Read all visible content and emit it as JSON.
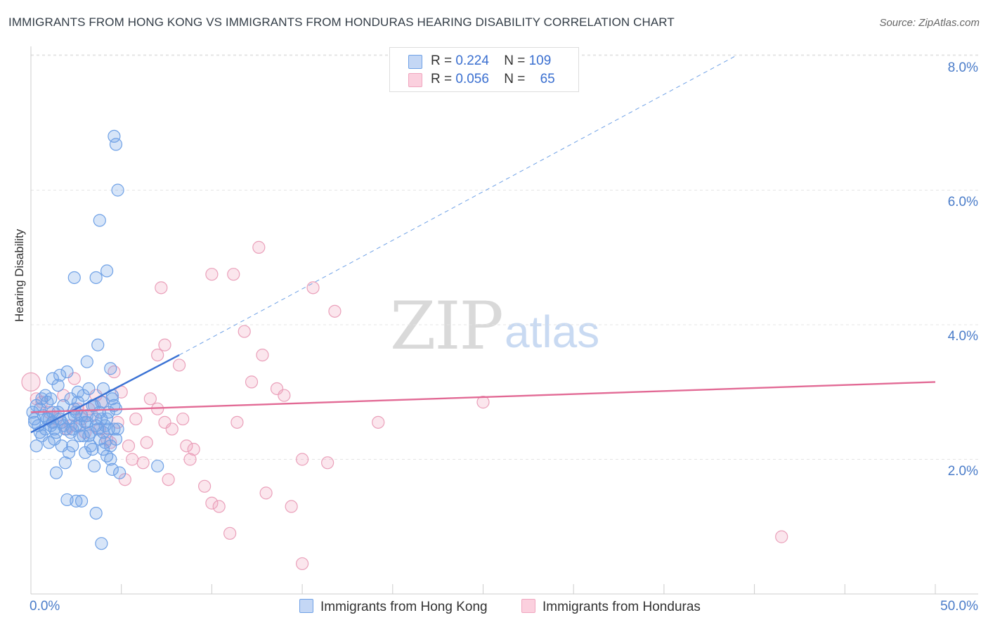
{
  "title": "IMMIGRANTS FROM HONG KONG VS IMMIGRANTS FROM HONDURAS HEARING DISABILITY CORRELATION CHART",
  "source": "Source: ZipAtlas.com",
  "watermark": {
    "zip": "ZIP",
    "atlas": "atlas"
  },
  "colors": {
    "blue": "#6fa1e6",
    "blue_line": "#3a72d4",
    "pink": "#f0a6bf",
    "pink_line": "#e26a95",
    "tick": "#4a7cc9"
  },
  "stats": [
    {
      "r_label": "R = ",
      "r_value": "0.224",
      "n_label": "N = ",
      "n_value": "109"
    },
    {
      "r_label": "R = ",
      "r_value": "0.056",
      "n_label": "N = ",
      "n_value": "65"
    }
  ],
  "legend": [
    {
      "label": "Immigrants from Hong Kong"
    },
    {
      "label": "Immigrants from Honduras"
    }
  ],
  "chart_data": {
    "type": "scatter",
    "ylabel": "Hearing Disability",
    "xlim": [
      0,
      50
    ],
    "ylim": [
      0,
      8.5
    ],
    "x_tick_labels": [
      "0.0%",
      "50.0%"
    ],
    "y_ticks": [
      2,
      4,
      6,
      8
    ],
    "y_tick_labels": [
      "2.0%",
      "4.0%",
      "6.0%",
      "8.0%"
    ],
    "grid": true,
    "legend_position": "bottom",
    "series": [
      {
        "name": "Immigrants from Hong Kong",
        "color": "#6fa1e6",
        "trend": {
          "x": [
            0,
            8.2
          ],
          "y": [
            2.4,
            3.55
          ],
          "dashed_extension_to": [
            39,
            8.0
          ]
        },
        "points": [
          [
            0.1,
            2.7
          ],
          [
            0.2,
            2.6
          ],
          [
            0.3,
            2.8
          ],
          [
            0.4,
            2.5
          ],
          [
            0.5,
            2.75
          ],
          [
            0.6,
            2.9
          ],
          [
            0.2,
            2.55
          ],
          [
            0.7,
            2.65
          ],
          [
            0.8,
            2.45
          ],
          [
            0.9,
            2.85
          ],
          [
            1.0,
            2.6
          ],
          [
            1.1,
            2.5
          ],
          [
            1.2,
            2.7
          ],
          [
            1.3,
            2.3
          ],
          [
            1.4,
            2.4
          ],
          [
            1.5,
            3.1
          ],
          [
            1.6,
            3.25
          ],
          [
            1.7,
            2.55
          ],
          [
            1.8,
            2.8
          ],
          [
            1.9,
            2.45
          ],
          [
            2.0,
            3.3
          ],
          [
            2.1,
            2.6
          ],
          [
            2.2,
            2.9
          ],
          [
            2.3,
            2.2
          ],
          [
            2.4,
            2.75
          ],
          [
            2.5,
            2.5
          ],
          [
            2.6,
            3.0
          ],
          [
            2.7,
            2.35
          ],
          [
            2.8,
            2.65
          ],
          [
            2.9,
            2.95
          ],
          [
            3.0,
            2.1
          ],
          [
            3.1,
            2.55
          ],
          [
            3.2,
            3.05
          ],
          [
            3.3,
            2.4
          ],
          [
            3.4,
            2.8
          ],
          [
            3.5,
            1.9
          ],
          [
            3.6,
            2.6
          ],
          [
            3.7,
            3.7
          ],
          [
            3.8,
            2.3
          ],
          [
            3.9,
            2.85
          ],
          [
            4.0,
            2.15
          ],
          [
            4.1,
            2.5
          ],
          [
            4.2,
            2.05
          ],
          [
            4.3,
            2.7
          ],
          [
            4.4,
            2.0
          ],
          [
            4.5,
            2.9
          ],
          [
            4.6,
            2.45
          ],
          [
            4.7,
            2.75
          ],
          [
            0.3,
            2.2
          ],
          [
            0.5,
            2.4
          ],
          [
            0.8,
            2.95
          ],
          [
            1.0,
            2.25
          ],
          [
            1.2,
            2.55
          ],
          [
            1.4,
            1.8
          ],
          [
            1.6,
            2.6
          ],
          [
            1.9,
            1.95
          ],
          [
            2.1,
            2.1
          ],
          [
            2.3,
            2.45
          ],
          [
            2.5,
            2.7
          ],
          [
            2.7,
            2.5
          ],
          [
            2.9,
            2.35
          ],
          [
            3.1,
            2.65
          ],
          [
            3.3,
            2.2
          ],
          [
            3.5,
            2.8
          ],
          [
            3.7,
            2.45
          ],
          [
            3.9,
            2.6
          ],
          [
            4.1,
            2.25
          ],
          [
            4.3,
            2.45
          ],
          [
            4.5,
            1.85
          ],
          [
            4.7,
            2.3
          ],
          [
            2.0,
            1.4
          ],
          [
            2.5,
            1.38
          ],
          [
            2.8,
            1.38
          ],
          [
            3.6,
            1.2
          ],
          [
            3.9,
            0.75
          ],
          [
            3.8,
            5.55
          ],
          [
            4.2,
            4.8
          ],
          [
            4.6,
            6.8
          ],
          [
            4.8,
            6.0
          ],
          [
            2.4,
            4.7
          ],
          [
            3.6,
            4.7
          ],
          [
            3.1,
            3.45
          ],
          [
            4.4,
            3.35
          ],
          [
            4.0,
            3.05
          ],
          [
            4.5,
            2.95
          ],
          [
            1.2,
            3.2
          ],
          [
            0.6,
            2.35
          ],
          [
            0.9,
            2.6
          ],
          [
            1.1,
            2.9
          ],
          [
            1.3,
            2.45
          ],
          [
            1.5,
            2.7
          ],
          [
            1.7,
            2.2
          ],
          [
            1.8,
            2.5
          ],
          [
            2.2,
            2.4
          ],
          [
            2.4,
            2.65
          ],
          [
            2.6,
            2.85
          ],
          [
            3.0,
            2.55
          ],
          [
            3.2,
            2.35
          ],
          [
            3.4,
            2.15
          ],
          [
            3.6,
            2.5
          ],
          [
            3.8,
            2.7
          ],
          [
            4.0,
            2.4
          ],
          [
            4.2,
            2.6
          ],
          [
            4.4,
            2.2
          ],
          [
            4.6,
            2.8
          ],
          [
            7.0,
            1.9
          ],
          [
            4.9,
            1.8
          ],
          [
            4.8,
            2.45
          ],
          [
            4.7,
            6.68
          ]
        ]
      },
      {
        "name": "Immigrants from Honduras",
        "color": "#f0a6bf",
        "trend": {
          "x": [
            0,
            50
          ],
          "y": [
            2.7,
            3.15
          ]
        },
        "points": [
          [
            0.0,
            3.15
          ],
          [
            0.3,
            2.9
          ],
          [
            0.6,
            2.85
          ],
          [
            1.0,
            2.7
          ],
          [
            1.4,
            2.6
          ],
          [
            1.8,
            2.95
          ],
          [
            2.2,
            2.5
          ],
          [
            2.6,
            2.75
          ],
          [
            3.0,
            2.4
          ],
          [
            3.4,
            2.65
          ],
          [
            3.8,
            2.45
          ],
          [
            4.2,
            2.3
          ],
          [
            4.6,
            3.3
          ],
          [
            5.0,
            3.0
          ],
          [
            5.4,
            2.2
          ],
          [
            5.8,
            2.6
          ],
          [
            6.2,
            1.95
          ],
          [
            6.6,
            2.9
          ],
          [
            7.0,
            3.55
          ],
          [
            7.4,
            2.55
          ],
          [
            7.8,
            2.45
          ],
          [
            8.2,
            3.4
          ],
          [
            8.6,
            2.2
          ],
          [
            9.0,
            2.15
          ],
          [
            9.6,
            1.6
          ],
          [
            10.0,
            1.35
          ],
          [
            10.4,
            1.3
          ],
          [
            11.0,
            0.9
          ],
          [
            11.2,
            4.75
          ],
          [
            10.0,
            4.75
          ],
          [
            7.2,
            4.55
          ],
          [
            7.4,
            3.7
          ],
          [
            11.4,
            2.55
          ],
          [
            11.8,
            3.9
          ],
          [
            12.2,
            3.15
          ],
          [
            12.6,
            5.15
          ],
          [
            12.8,
            3.55
          ],
          [
            13.0,
            1.5
          ],
          [
            13.6,
            3.05
          ],
          [
            14.0,
            2.95
          ],
          [
            14.4,
            1.3
          ],
          [
            15.0,
            2.0
          ],
          [
            15.6,
            4.55
          ],
          [
            16.4,
            1.95
          ],
          [
            16.8,
            4.2
          ],
          [
            19.2,
            2.55
          ],
          [
            2.4,
            3.2
          ],
          [
            3.2,
            2.75
          ],
          [
            4.0,
            2.85
          ],
          [
            4.8,
            2.55
          ],
          [
            5.6,
            2.0
          ],
          [
            6.4,
            2.25
          ],
          [
            7.0,
            2.75
          ],
          [
            7.6,
            1.7
          ],
          [
            8.4,
            2.6
          ],
          [
            5.2,
            1.7
          ],
          [
            8.8,
            2.0
          ],
          [
            15.0,
            0.45
          ],
          [
            25.0,
            2.85
          ],
          [
            41.5,
            0.85
          ],
          [
            1.2,
            2.55
          ],
          [
            2.0,
            2.45
          ],
          [
            2.8,
            2.6
          ],
          [
            3.6,
            2.95
          ],
          [
            4.4,
            2.25
          ]
        ]
      }
    ]
  }
}
